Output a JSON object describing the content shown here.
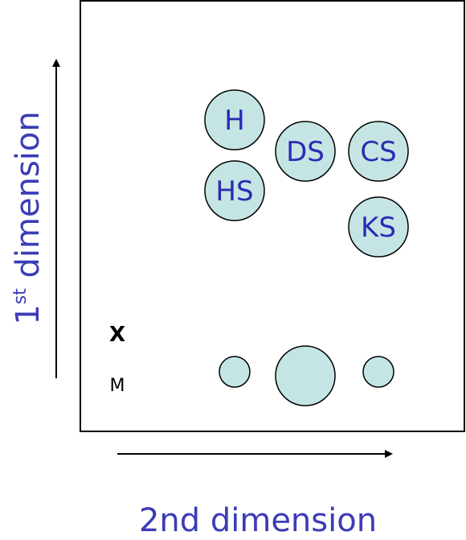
{
  "diagram": {
    "x_axis_label": "2nd dimension",
    "y_axis_label_main": "1",
    "y_axis_label_sup": "st",
    "y_axis_label_rest": " dimension",
    "legend_x_label": "X",
    "legend_m_label": "M",
    "nodes": [
      {
        "id": "h",
        "label": "H"
      },
      {
        "id": "ds",
        "label": "DS"
      },
      {
        "id": "cs",
        "label": "CS"
      },
      {
        "id": "hs",
        "label": "HS"
      },
      {
        "id": "ks",
        "label": "KS"
      }
    ],
    "size_legend": [
      "small",
      "large",
      "small"
    ]
  },
  "colors": {
    "circle_fill": "#c5e5e5",
    "circle_stroke": "#000000",
    "label_text": "#2b2bb3",
    "axis_text": "#3b3bb8"
  }
}
